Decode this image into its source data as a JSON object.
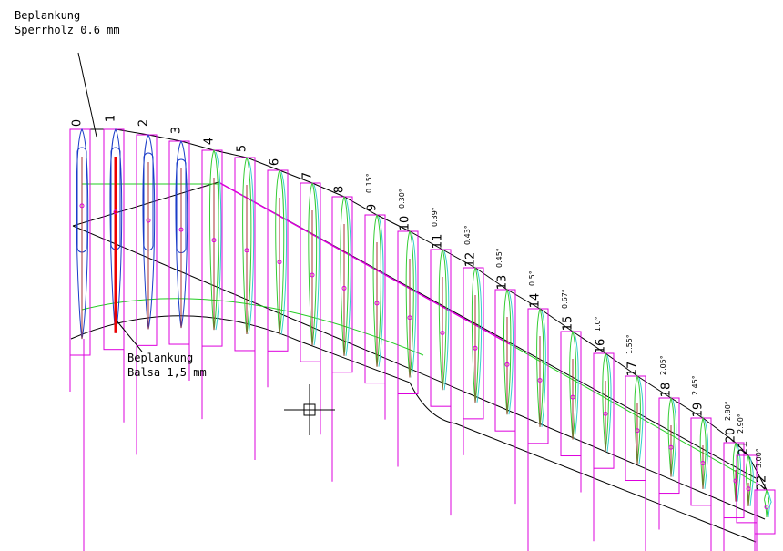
{
  "annotations": [
    {
      "lines": [
        "Beplankung",
        "Sperrholz 0.6 mm"
      ]
    },
    {
      "lines": [
        "Beplankung",
        "Balsa 1,5 mm"
      ]
    }
  ],
  "ribs": [
    {
      "number": "0"
    },
    {
      "number": "1"
    },
    {
      "number": "2"
    },
    {
      "number": "3"
    },
    {
      "number": "4"
    },
    {
      "number": "5"
    },
    {
      "number": "6"
    },
    {
      "number": "7"
    },
    {
      "number": "8"
    },
    {
      "number": "9",
      "angle": "0.15°"
    },
    {
      "number": "10",
      "angle": "0.30°"
    },
    {
      "number": "11",
      "angle": "0.39°"
    },
    {
      "number": "12",
      "angle": "0.43°"
    },
    {
      "number": "13",
      "angle": "0.45°"
    },
    {
      "number": "14",
      "angle": "0.5°"
    },
    {
      "number": "15",
      "angle": "0.67°"
    },
    {
      "number": "16",
      "angle": "1.0°"
    },
    {
      "number": "17",
      "angle": "1.55°"
    },
    {
      "number": "18",
      "angle": "2.05°"
    },
    {
      "number": "19",
      "angle": "2.45°"
    },
    {
      "number": "20",
      "angle": "2.80°"
    },
    {
      "number": "21",
      "angle": "2.90°"
    },
    {
      "number": "22",
      "angle": "3.00°"
    }
  ]
}
